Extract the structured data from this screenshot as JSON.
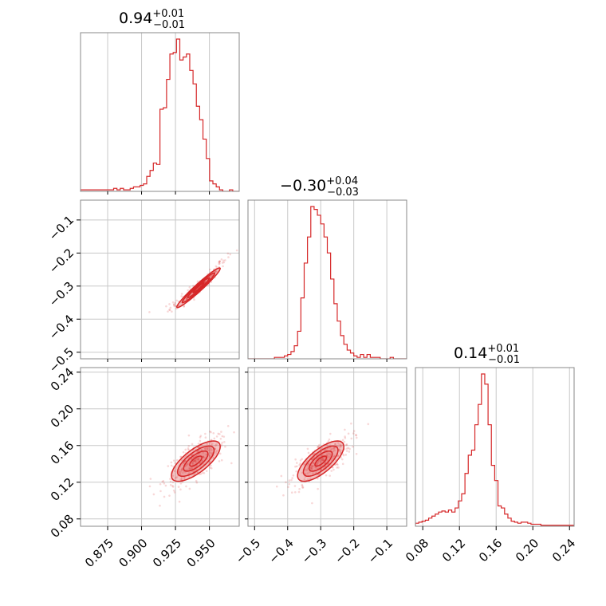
{
  "colors": {
    "accent": "#d62728",
    "grid": "#c8c8c8",
    "frame": "#888888"
  },
  "chart_data": {
    "type": "corner",
    "parameters": [
      {
        "title_main": "0.94",
        "title_plus": "+0.01",
        "title_minus": "−0.01",
        "range": [
          0.855,
          0.972
        ]
      },
      {
        "title_main": "−0.30",
        "title_plus": "+0.04",
        "title_minus": "−0.03",
        "range": [
          -0.52,
          -0.04
        ]
      },
      {
        "title_main": "0.14",
        "title_plus": "+0.01",
        "title_minus": "−0.01",
        "range": [
          0.072,
          0.245
        ]
      }
    ],
    "x_ticks": [
      {
        "values": [
          0.875,
          0.9,
          0.925,
          0.95
        ],
        "labels": [
          "0.875",
          "0.900",
          "0.925",
          "0.950"
        ]
      },
      {
        "values": [
          -0.5,
          -0.4,
          -0.3,
          -0.2,
          -0.1
        ],
        "labels": [
          "−0.5",
          "−0.4",
          "−0.3",
          "−0.2",
          "−0.1"
        ]
      },
      {
        "values": [
          0.08,
          0.12,
          0.16,
          0.2,
          0.24
        ],
        "labels": [
          "0.08",
          "0.12",
          "0.16",
          "0.20",
          "0.24"
        ]
      }
    ],
    "y_ticks": [
      {
        "row": 1,
        "values": [
          -0.5,
          -0.4,
          -0.3,
          -0.2,
          -0.1
        ],
        "labels": [
          "−0.5",
          "−0.4",
          "−0.3",
          "−0.2",
          "−0.1"
        ]
      },
      {
        "row": 2,
        "values": [
          0.08,
          0.12,
          0.16,
          0.2,
          0.24
        ],
        "labels": [
          "0.08",
          "0.12",
          "0.16",
          "0.20",
          "0.24"
        ]
      }
    ],
    "histograms": [
      {
        "param": 0,
        "start": 0.855,
        "step": 0.00244,
        "counts": [
          1,
          1,
          1,
          1,
          1,
          1,
          1,
          1,
          1,
          1,
          2,
          1,
          2,
          1,
          1,
          2,
          3,
          3,
          4,
          5,
          10,
          14,
          19,
          18,
          55,
          56,
          75,
          92,
          93,
          102,
          88,
          90,
          92,
          81,
          72,
          57,
          48,
          35,
          22,
          7,
          5,
          3,
          1,
          0,
          0,
          1,
          0,
          0
        ]
      },
      {
        "param": 1,
        "start": -0.52,
        "step": 0.01,
        "counts": [
          0,
          0,
          0,
          0,
          0,
          0,
          0,
          0,
          1,
          1,
          1,
          2,
          3,
          5,
          9,
          19,
          42,
          66,
          84,
          105,
          103,
          99,
          93,
          84,
          73,
          55,
          38,
          26,
          16,
          10,
          6,
          4,
          2,
          1,
          3,
          1,
          3,
          1,
          1,
          1,
          0,
          0,
          0,
          1,
          0,
          0,
          0,
          0
        ]
      },
      {
        "param": 2,
        "start": 0.072,
        "step": 0.0036,
        "counts": [
          3,
          4,
          5,
          6,
          8,
          10,
          12,
          14,
          15,
          14,
          16,
          14,
          18,
          25,
          32,
          52,
          70,
          75,
          100,
          120,
          150,
          140,
          100,
          60,
          45,
          20,
          18,
          12,
          8,
          5,
          4,
          3,
          4,
          4,
          3,
          2,
          2,
          2,
          1,
          1,
          1,
          1,
          1,
          1,
          1,
          1,
          1,
          1
        ]
      }
    ],
    "pairs": [
      {
        "x": 0,
        "y": 1,
        "center": [
          0.942,
          -0.305
        ],
        "sigma": [
          0.008,
          0.03
        ],
        "rho": 0.97,
        "n_points": 220
      },
      {
        "x": 0,
        "y": 2,
        "center": [
          0.94,
          0.143
        ],
        "sigma": [
          0.009,
          0.011
        ],
        "rho": 0.72,
        "n_points": 300
      },
      {
        "x": 1,
        "y": 2,
        "center": [
          -0.3,
          0.143
        ],
        "sigma": [
          0.035,
          0.011
        ],
        "rho": 0.72,
        "n_points": 300
      }
    ],
    "contour_levels_sigma": [
      0.5,
      1.0,
      1.5,
      2.0
    ]
  }
}
